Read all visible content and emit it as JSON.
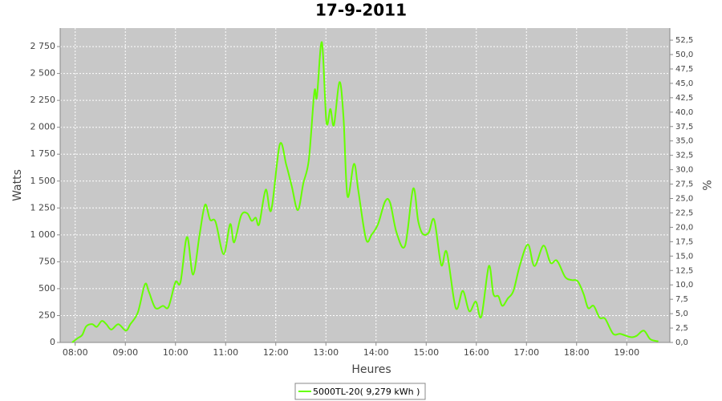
{
  "chart_data": {
    "type": "line",
    "title": "17-9-2011",
    "x_label": "Heures",
    "y_label": "Watts",
    "y2_label": "%",
    "x": [
      7.94,
      8.05,
      8.14,
      8.22,
      8.34,
      8.43,
      8.53,
      8.62,
      8.72,
      8.86,
      9.01,
      9.1,
      9.25,
      9.39,
      9.47,
      9.6,
      9.75,
      9.86,
      10.0,
      10.1,
      10.23,
      10.35,
      10.48,
      10.59,
      10.69,
      10.8,
      10.96,
      11.09,
      11.17,
      11.31,
      11.43,
      11.52,
      11.6,
      11.67,
      11.8,
      11.91,
      12.08,
      12.21,
      12.32,
      12.44,
      12.55,
      12.66,
      12.77,
      12.82,
      12.92,
      13.01,
      13.09,
      13.16,
      13.27,
      13.35,
      13.43,
      13.56,
      13.65,
      13.8,
      13.91,
      14.04,
      14.18,
      14.28,
      14.41,
      14.58,
      14.74,
      14.84,
      14.93,
      15.05,
      15.16,
      15.3,
      15.41,
      15.59,
      15.73,
      15.86,
      15.99,
      16.1,
      16.25,
      16.34,
      16.44,
      16.52,
      16.63,
      16.74,
      16.87,
      17.03,
      17.16,
      17.34,
      17.48,
      17.61,
      17.77,
      17.9,
      18.02,
      18.14,
      18.23,
      18.34,
      18.46,
      18.57,
      18.73,
      18.87,
      19.07,
      19.19,
      19.34,
      19.47,
      19.63
    ],
    "series": [
      {
        "name": "5000TL-20( 9,279 kWh )",
        "color": "#66ff00",
        "values": [
          0,
          40,
          70,
          150,
          170,
          145,
          200,
          170,
          120,
          170,
          110,
          170,
          280,
          540,
          470,
          320,
          340,
          330,
          560,
          560,
          980,
          630,
          1000,
          1280,
          1140,
          1120,
          820,
          1100,
          930,
          1180,
          1200,
          1130,
          1160,
          1100,
          1420,
          1230,
          1840,
          1650,
          1450,
          1230,
          1480,
          1700,
          2330,
          2280,
          2790,
          2050,
          2170,
          2020,
          2420,
          2100,
          1360,
          1660,
          1400,
          960,
          1000,
          1100,
          1310,
          1300,
          1020,
          900,
          1430,
          1130,
          1010,
          1020,
          1140,
          720,
          840,
          320,
          480,
          290,
          380,
          240,
          710,
          450,
          430,
          340,
          410,
          480,
          720,
          910,
          710,
          900,
          740,
          760,
          610,
          580,
          570,
          450,
          320,
          340,
          230,
          220,
          80,
          80,
          50,
          60,
          110,
          30,
          10
        ]
      }
    ],
    "xlim": [
      7.7,
      19.86
    ],
    "xticks": [
      {
        "value": 8,
        "label": "08:00"
      },
      {
        "value": 9,
        "label": "09:00"
      },
      {
        "value": 10,
        "label": "10:00"
      },
      {
        "value": 11,
        "label": "11:00"
      },
      {
        "value": 12,
        "label": "12:00"
      },
      {
        "value": 13,
        "label": "13:00"
      },
      {
        "value": 14,
        "label": "14:00"
      },
      {
        "value": 15,
        "label": "15:00"
      },
      {
        "value": 16,
        "label": "16:00"
      },
      {
        "value": 17,
        "label": "17:00"
      },
      {
        "value": 18,
        "label": "18:00"
      },
      {
        "value": 19,
        "label": "19:00"
      }
    ],
    "ylim": [
      0,
      2922
    ],
    "yticks": [
      0,
      250,
      500,
      750,
      {
        "value": 1000,
        "label": "1 000"
      },
      {
        "value": 1250,
        "label": "1 250"
      },
      {
        "value": 1500,
        "label": "1 500"
      },
      {
        "value": 1750,
        "label": "1 750"
      },
      {
        "value": 2000,
        "label": "2 000"
      },
      {
        "value": 2250,
        "label": "2 250"
      },
      {
        "value": 2500,
        "label": "2 500"
      },
      {
        "value": 2750,
        "label": "2 750"
      }
    ],
    "y2lim": [
      0,
      54.6
    ],
    "y2ticks": [
      {
        "value": 0,
        "label": "0,0"
      },
      {
        "value": 2.5,
        "label": "2,5"
      },
      {
        "value": 5,
        "label": "5,0"
      },
      {
        "value": 7.5,
        "label": "7,5"
      },
      {
        "value": 10,
        "label": "10,0"
      },
      {
        "value": 12.5,
        "label": "12,5"
      },
      {
        "value": 15,
        "label": "15,0"
      },
      {
        "value": 17.5,
        "label": "17,5"
      },
      {
        "value": 20,
        "label": "20,0"
      },
      {
        "value": 22.5,
        "label": "22,5"
      },
      {
        "value": 25,
        "label": "25,0"
      },
      {
        "value": 27.5,
        "label": "27,5"
      },
      {
        "value": 30,
        "label": "30,0"
      },
      {
        "value": 32.5,
        "label": "32,5"
      },
      {
        "value": 35,
        "label": "35,0"
      },
      {
        "value": 37.5,
        "label": "37,5"
      },
      {
        "value": 40,
        "label": "40,0"
      },
      {
        "value": 42.5,
        "label": "42,5"
      },
      {
        "value": 45,
        "label": "45,0"
      },
      {
        "value": 47.5,
        "label": "47,5"
      },
      {
        "value": 50,
        "label": "50,0"
      },
      {
        "value": 52.5,
        "label": "52,5"
      }
    ],
    "grid": true,
    "legend": "bottom",
    "plot_background": "#c8c8c8"
  }
}
